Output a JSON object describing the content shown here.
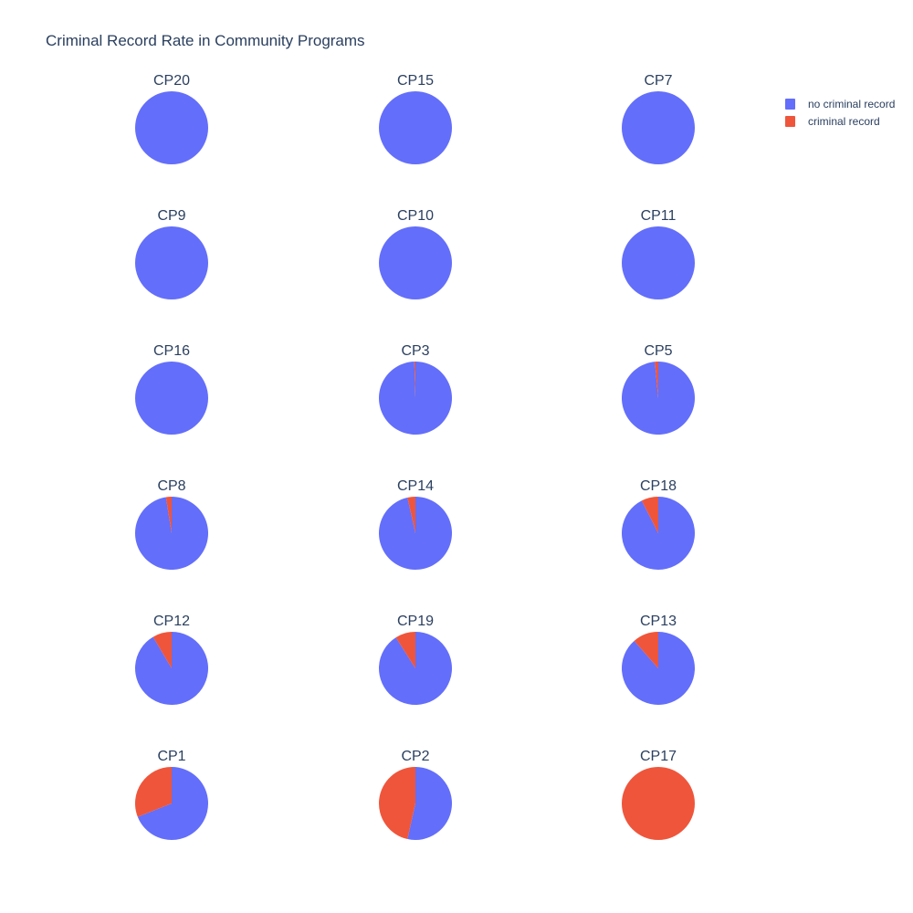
{
  "chart_data": {
    "type": "pie",
    "title": "Criminal Record Rate in Community Programs",
    "series": [
      {
        "name": "no criminal record",
        "color": "#636efa"
      },
      {
        "name": "criminal record",
        "color": "#ef553b"
      }
    ],
    "legend_position": "top-right",
    "pies": [
      {
        "label": "CP20",
        "values": [
          100.0,
          0.0
        ]
      },
      {
        "label": "CP15",
        "values": [
          100.0,
          0.0
        ]
      },
      {
        "label": "CP7",
        "values": [
          100.0,
          0.0
        ]
      },
      {
        "label": "CP9",
        "values": [
          100.0,
          0.0
        ]
      },
      {
        "label": "CP10",
        "values": [
          100.0,
          0.0
        ]
      },
      {
        "label": "CP11",
        "values": [
          100.0,
          0.0
        ]
      },
      {
        "label": "CP16",
        "values": [
          100.0,
          0.0
        ]
      },
      {
        "label": "CP3",
        "values": [
          99.5,
          0.5
        ]
      },
      {
        "label": "CP5",
        "values": [
          98.5,
          1.5
        ]
      },
      {
        "label": "CP8",
        "values": [
          97.5,
          2.5
        ]
      },
      {
        "label": "CP14",
        "values": [
          96.5,
          3.5
        ]
      },
      {
        "label": "CP18",
        "values": [
          92.5,
          7.5
        ]
      },
      {
        "label": "CP12",
        "values": [
          91.5,
          8.5
        ]
      },
      {
        "label": "CP19",
        "values": [
          91.0,
          9.0
        ]
      },
      {
        "label": "CP13",
        "values": [
          88.5,
          11.5
        ]
      },
      {
        "label": "CP1",
        "values": [
          69.0,
          31.0
        ]
      },
      {
        "label": "CP2",
        "values": [
          53.5,
          46.5
        ]
      },
      {
        "label": "CP17",
        "values": [
          0.0,
          100.0
        ]
      }
    ]
  }
}
